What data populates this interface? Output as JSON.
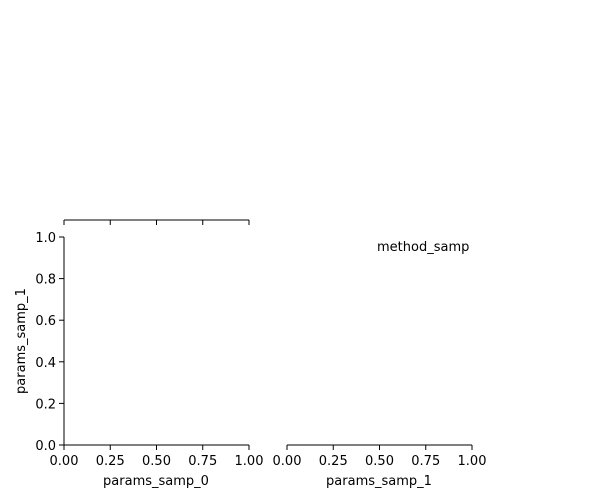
{
  "chart_data": [
    {
      "type": "scatter",
      "panel": "top-left",
      "ylabel": "",
      "xlim": [
        0,
        1
      ],
      "x_ticks": [
        "0.00",
        "0.25",
        "0.50",
        "0.75",
        "1.00"
      ],
      "show_x_tick_labels": false,
      "show_left_axis": false,
      "series": []
    },
    {
      "type": "scatter",
      "panel": "bottom-left",
      "xlabel": "params_samp_0",
      "ylabel": "params_samp_1",
      "xlim": [
        0,
        1
      ],
      "ylim": [
        0,
        1
      ],
      "x_ticks": [
        "0.00",
        "0.25",
        "0.50",
        "0.75",
        "1.00"
      ],
      "y_ticks": [
        "0.0",
        "0.2",
        "0.4",
        "0.6",
        "0.8",
        "1.0"
      ],
      "series": []
    },
    {
      "type": "scatter",
      "panel": "bottom-right",
      "xlabel": "params_samp_1",
      "xlim": [
        0,
        1
      ],
      "x_ticks": [
        "0.00",
        "0.25",
        "0.50",
        "0.75",
        "1.00"
      ],
      "show_left_axis": false,
      "series": []
    }
  ],
  "legend": {
    "title": "method_samp",
    "placement": "right",
    "entries": []
  }
}
